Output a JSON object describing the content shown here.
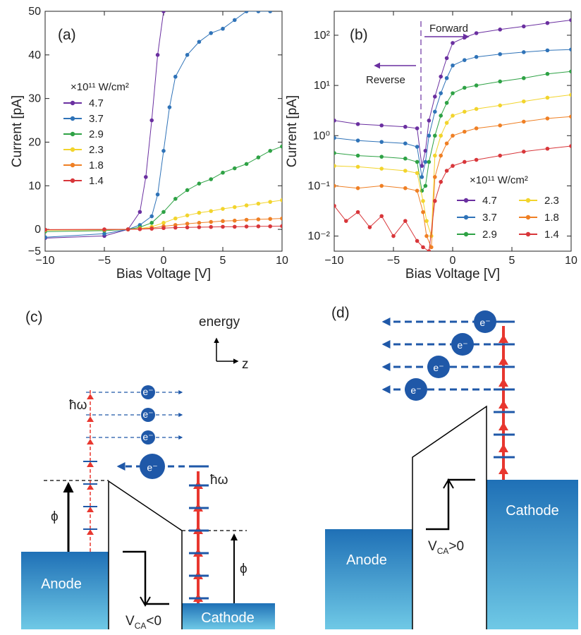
{
  "chart_data": [
    {
      "id": "a",
      "panel_label": "(a)",
      "type": "line",
      "xlabel": "Bias Voltage [V]",
      "ylabel": "Current [pA]",
      "xlim": [
        -10,
        10
      ],
      "ylim": [
        -5,
        50
      ],
      "xticks": [
        -10,
        -5,
        0,
        5,
        10
      ],
      "yticks": [
        -5,
        0,
        10,
        20,
        30,
        40,
        50
      ],
      "xtick_labels": [
        "−10",
        "−5",
        "0",
        "5",
        "10"
      ],
      "ytick_labels": [
        "−5",
        "0",
        "10",
        "20",
        "30",
        "40",
        "50"
      ],
      "legend_title": "×10¹¹ W/cm²",
      "series": [
        {
          "name": "4.7",
          "color": "#6a2fa0",
          "x": [
            -10,
            -5,
            -3,
            -2,
            -1.5,
            -1,
            -0.5,
            0
          ],
          "y": [
            -2,
            -1.5,
            0,
            4,
            12,
            25,
            40,
            50
          ]
        },
        {
          "name": "3.7",
          "color": "#2f73b8",
          "x": [
            -10,
            -5,
            -3,
            -2,
            -1,
            -0.5,
            0,
            0.5,
            1,
            2,
            3,
            4,
            5,
            6,
            7,
            8,
            9
          ],
          "y": [
            -1.8,
            -1,
            0,
            1,
            3,
            8,
            18,
            28,
            35,
            40,
            43,
            45,
            46,
            48,
            50,
            50,
            50
          ]
        },
        {
          "name": "2.9",
          "color": "#2ea245",
          "x": [
            -10,
            -5,
            -3,
            -2,
            -1,
            0,
            1,
            2,
            3,
            4,
            5,
            6,
            7,
            8,
            9,
            10
          ],
          "y": [
            -0.5,
            -0.3,
            0,
            0.5,
            1.5,
            4,
            7,
            9,
            10.5,
            11.5,
            13,
            14,
            15,
            16.5,
            18,
            19
          ]
        },
        {
          "name": "2.3",
          "color": "#f2d42c",
          "x": [
            -10,
            -5,
            -3,
            -2,
            -1,
            0,
            1,
            2,
            3,
            4,
            5,
            6,
            7,
            8,
            9,
            10
          ],
          "y": [
            -0.2,
            -0.1,
            0,
            0.2,
            0.6,
            1.5,
            2.5,
            3.2,
            3.8,
            4.2,
            4.7,
            5.1,
            5.5,
            5.9,
            6.3,
            6.7
          ]
        },
        {
          "name": "1.8",
          "color": "#ef7f24",
          "x": [
            -10,
            -5,
            -3,
            -2,
            -1,
            0,
            1,
            2,
            3,
            4,
            5,
            6,
            7,
            8,
            9,
            10
          ],
          "y": [
            -0.1,
            -0.05,
            0,
            0.1,
            0.3,
            0.7,
            1.0,
            1.3,
            1.5,
            1.7,
            1.9,
            2.0,
            2.2,
            2.3,
            2.4,
            2.5
          ]
        },
        {
          "name": "1.4",
          "color": "#d8363a",
          "x": [
            -10,
            -5,
            -3,
            -2,
            -1,
            0,
            1,
            2,
            3,
            4,
            5,
            6,
            7,
            8,
            9,
            10
          ],
          "y": [
            -0.05,
            0,
            0,
            0.05,
            0.15,
            0.3,
            0.4,
            0.45,
            0.5,
            0.55,
            0.6,
            0.6,
            0.65,
            0.7,
            0.7,
            0.75
          ]
        }
      ]
    },
    {
      "id": "b",
      "panel_label": "(b)",
      "type": "line",
      "yscale": "log",
      "xlabel": "Bias Voltage [V]",
      "ylabel": "Current [pA]",
      "xlim": [
        -10,
        10
      ],
      "ylim": [
        0.005,
        300
      ],
      "xticks": [
        -10,
        -5,
        0,
        5,
        10
      ],
      "xtick_labels": [
        "−10",
        "−5",
        "0",
        "5",
        "10"
      ],
      "yticks": [
        0.01,
        0.1,
        1,
        10,
        100
      ],
      "ytick_labels": [
        "10⁻²",
        "10⁻¹",
        "10⁰",
        "10¹",
        "10²"
      ],
      "legend_title": "×10¹¹ W/cm²",
      "annotations": {
        "forward": "Forward",
        "reverse": "Reverse",
        "divider_x": -2.7
      },
      "series": [
        {
          "name": "4.7",
          "color": "#6a2fa0",
          "x": [
            -10,
            -8,
            -6,
            -4,
            -3,
            -2.6,
            -2.3,
            -2,
            -1.5,
            -1,
            -0.5,
            0,
            1,
            2,
            4,
            6,
            8,
            10
          ],
          "y": [
            2,
            1.7,
            1.6,
            1.5,
            1.4,
            0.25,
            0.5,
            2,
            6,
            15,
            35,
            70,
            90,
            110,
            130,
            150,
            175,
            200
          ]
        },
        {
          "name": "3.7",
          "color": "#2f73b8",
          "x": [
            -10,
            -8,
            -6,
            -4,
            -3,
            -2.6,
            -2.3,
            -2,
            -1.5,
            -1,
            -0.5,
            0,
            1,
            2,
            4,
            6,
            8,
            10
          ],
          "y": [
            0.9,
            0.8,
            0.75,
            0.7,
            0.6,
            0.15,
            0.3,
            1,
            3,
            7,
            14,
            25,
            32,
            37,
            42,
            46,
            50,
            52
          ]
        },
        {
          "name": "2.9",
          "color": "#2ea245",
          "x": [
            -10,
            -8,
            -6,
            -4,
            -3,
            -2.6,
            -2.3,
            -2,
            -1.5,
            -1,
            -0.5,
            0,
            1,
            2,
            4,
            6,
            8,
            10
          ],
          "y": [
            0.45,
            0.4,
            0.38,
            0.35,
            0.3,
            0.08,
            0.1,
            0.3,
            1,
            2.5,
            4.5,
            7,
            9,
            10,
            12,
            14,
            17,
            19
          ]
        },
        {
          "name": "2.3",
          "color": "#f2d42c",
          "x": [
            -10,
            -8,
            -6,
            -4,
            -3,
            -2.5,
            -2.2,
            -1.8,
            -1.5,
            -1,
            -0.5,
            0,
            1,
            2,
            4,
            6,
            8,
            10
          ],
          "y": [
            0.25,
            0.24,
            0.22,
            0.2,
            0.18,
            0.05,
            0.02,
            0.01,
            0.4,
            1,
            1.8,
            2.5,
            3,
            3.4,
            4,
            4.8,
            5.7,
            6.5
          ]
        },
        {
          "name": "1.8",
          "color": "#ef7f24",
          "x": [
            -10,
            -8,
            -6,
            -4,
            -3,
            -2.5,
            -2.2,
            -1.8,
            -1.5,
            -1,
            -0.5,
            0,
            1,
            2,
            4,
            6,
            8,
            10
          ],
          "y": [
            0.1,
            0.09,
            0.1,
            0.09,
            0.08,
            0.03,
            0.01,
            0.006,
            0.15,
            0.4,
            0.7,
            1,
            1.2,
            1.4,
            1.6,
            1.9,
            2.2,
            2.4
          ]
        },
        {
          "name": "1.4",
          "color": "#d8363a",
          "x": [
            -10,
            -9,
            -8,
            -7,
            -6,
            -5,
            -4,
            -3,
            -2.5,
            -2,
            -1.5,
            -1,
            -0.5,
            0,
            1,
            2,
            4,
            6,
            8,
            10
          ],
          "y": [
            0.04,
            0.02,
            0.03,
            0.015,
            0.025,
            0.01,
            0.02,
            0.008,
            0.006,
            0.005,
            0.05,
            0.12,
            0.2,
            0.25,
            0.3,
            0.33,
            0.4,
            0.48,
            0.55,
            0.62
          ]
        }
      ]
    }
  ],
  "diagram": {
    "c": {
      "panel_label": "(c)",
      "energy_label": "energy",
      "z_label": "z",
      "hbar_omega": "ħω",
      "hbar_omega_2": "ħω",
      "phi_left": "ϕ",
      "phi_right": "ϕ",
      "anode": "Anode",
      "cathode": "Cathode",
      "vca_main": "V",
      "vca_sub": "CA",
      "vca_rel": "<0",
      "electron": "e⁻",
      "box_top": "#1f70b6",
      "box_bottom": "#6fc9e6",
      "arrow_red": "#e8372f",
      "electron_blue": "#1f58a8"
    },
    "d": {
      "panel_label": "(d)",
      "anode": "Anode",
      "cathode": "Cathode",
      "vca_main": "V",
      "vca_sub": "CA",
      "vca_rel": ">0",
      "electron": "e⁻"
    }
  }
}
